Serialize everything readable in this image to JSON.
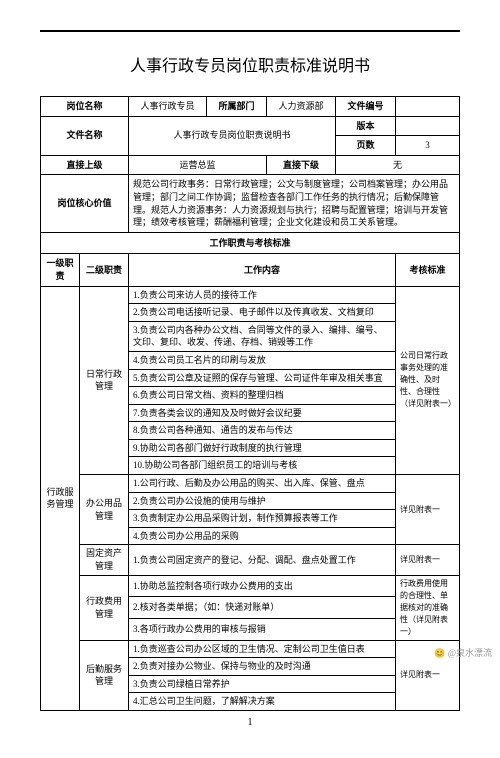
{
  "title": "人事行政专员岗位职责标准说明书",
  "header": {
    "position_label": "岗位名称",
    "position": "人事行政专员",
    "dept_label": "所属部门",
    "dept": "人力资源部",
    "docno_label": "文件编号",
    "docno": "",
    "filename_label": "文件名称",
    "filename": "人事行政专员岗位职责说明书",
    "version_label": "版本",
    "version": "",
    "pages_label": "页数",
    "pages": "3",
    "supervisor_label": "直接上级",
    "supervisor": "运营总监",
    "subordinate_label": "直接下级",
    "subordinate": "无"
  },
  "core": {
    "label": "岗位核心价值",
    "text": "规范公司行政事务：日常行政管理；公文与制度管理；公司档案管理；办公用品管理；部门之间工作协调；监督检查各部门工作任务的执行情况；后勤保障管理。规范人力资源事务：人力资源规划与执行；招聘与配置管理；培训与开发管理；绩效考核管理；薪酬福利管理；企业文化建设和员工关系管理。"
  },
  "assess_title": "工作职责与考核标准",
  "columns": {
    "l1": "一级职责",
    "l2": "二级职责",
    "content": "工作内容",
    "standard": "考核标准"
  },
  "l1_admin": "行政服务管理",
  "sections": [
    {
      "l2": "日常行政管理",
      "items": [
        "1.负责公司来访人员的接待工作",
        "2.负责公司电话接听记录、电子邮件以及传真收发、文档复印",
        "3.负责公司内各种办公文档、合同等文件的录入、编排、编号、文印、复印、收发、传递、存档、销毁等工作",
        "4.负责公司员工名片的印刷与发放",
        "5.负责公司公章及证照的保存与管理、公司证件年审及相关事宜",
        "6.负责公司日常文档、资料的整理归档",
        "7.负责各类会议的通知及及时做好会议纪要",
        "8.负责公司各种通知、通告的发布与传达",
        "9.协助公司各部门做好行政制度的执行管理",
        "10.协助公司各部门组织员工的培训与考核"
      ],
      "standard": "公司日常行政事务处理的准确性、及时性、合理性（详见附表一）"
    },
    {
      "l2": "办公用品管理",
      "items": [
        "1.公司行政、后勤及办公用品的购买、出入库、保管、盘点",
        "2.负责公司办公设施的使用与维护",
        "3.负责制定办公用品采购计划，制作预算报表等工作",
        "4.负责公司办公用品的采购"
      ],
      "standard": "详见附表一"
    },
    {
      "l2": "固定资产管理",
      "items": [
        "1.负责公司固定资产的登记、分配、调配、盘点处置工作"
      ],
      "standard": "详见附表一"
    },
    {
      "l2": "行政费用管理",
      "items": [
        "1.协助总监控制各项行政办公费用的支出",
        "2.核对各类单据；（如：快递对账单）",
        "3.各项行政办公费用的审核与报销"
      ],
      "standard": "行政费用使用的合理性、单据核对的准确性（详见附表一）"
    },
    {
      "l2": "后勤服务管理",
      "items": [
        "1.负责巡查公司办公区域的卫生情况、定制公司卫生值日表",
        "2.负责对接办公物业、保持与物业的及时沟通",
        "3.负责公司绿植日常养护",
        "4.汇总公司卫生问题，了解解决方案"
      ],
      "standard": "详见附表一"
    }
  ],
  "page_num": "1",
  "watermark": "@泉水漂流"
}
